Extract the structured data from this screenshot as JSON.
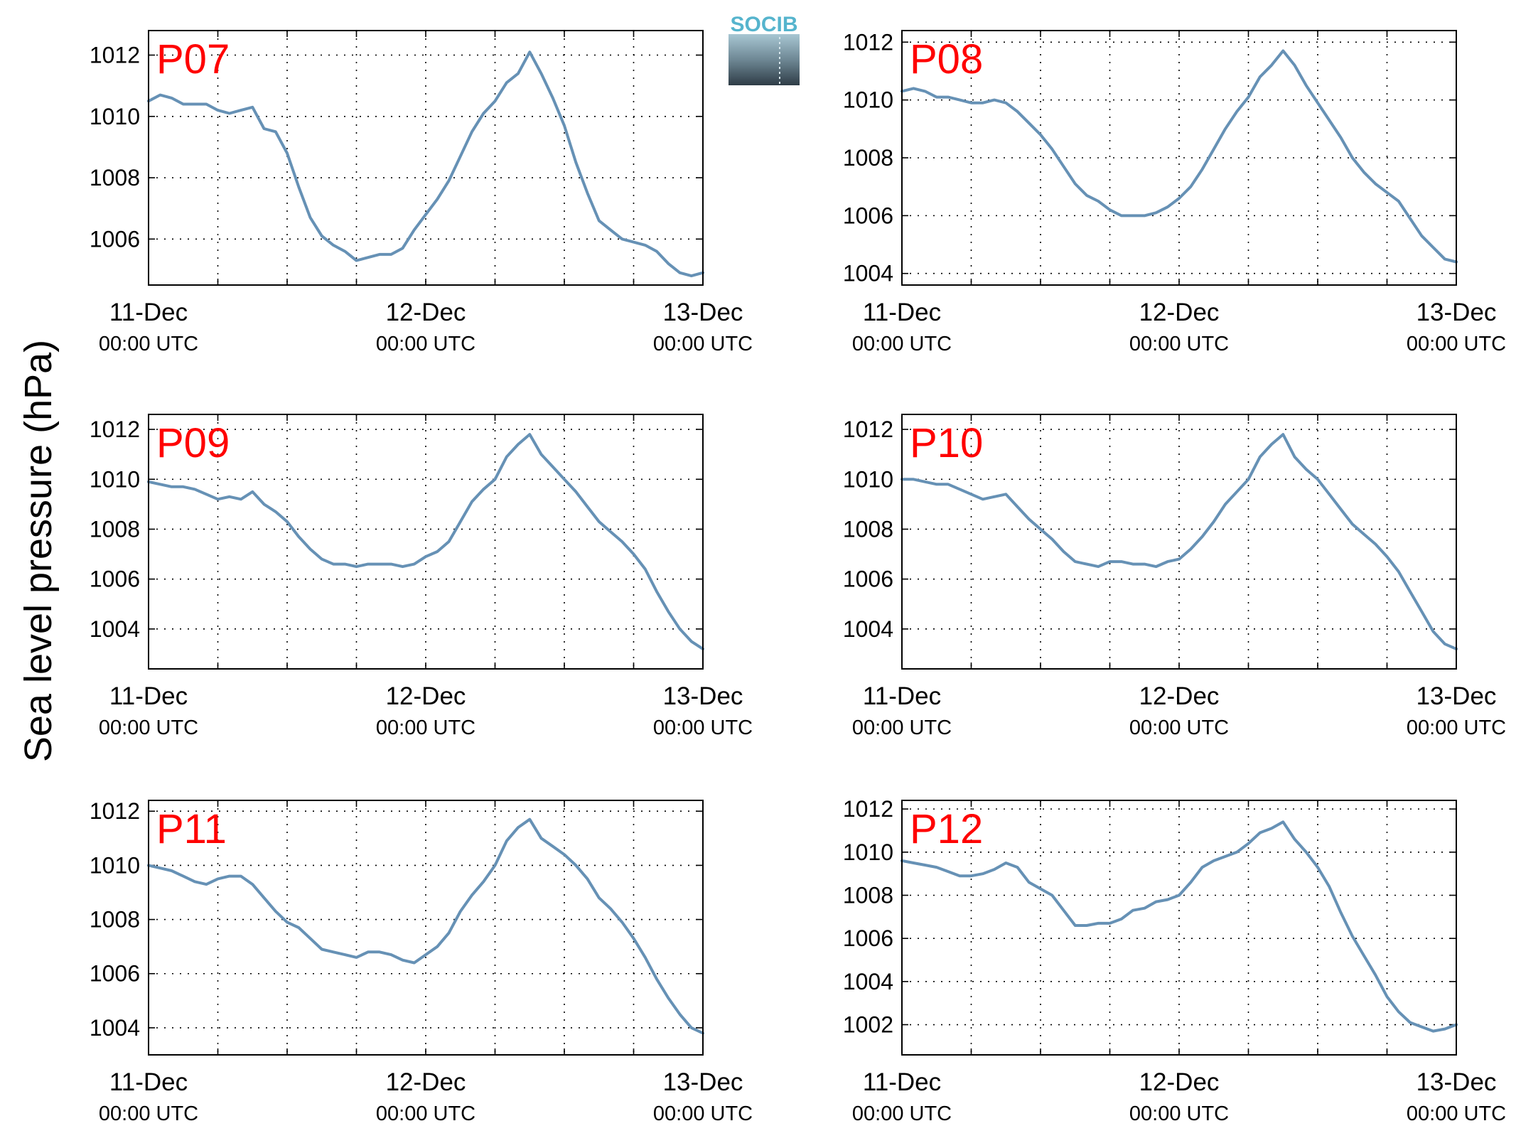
{
  "figure": {
    "ylabel": "Sea level pressure (hPa)",
    "logo_text": "SOCIB",
    "line_color": "#6691b5",
    "label_color": "#ff0000"
  },
  "chart_data": [
    {
      "type": "line",
      "label": "P07",
      "x_ticks": [
        {
          "date": "11-Dec",
          "time": "00:00 UTC"
        },
        {
          "date": "12-Dec",
          "time": "00:00 UTC"
        },
        {
          "date": "13-Dec",
          "time": "00:00 UTC"
        }
      ],
      "x_range_hours": [
        0,
        48
      ],
      "ylim": [
        1004.5,
        1012.8
      ],
      "yticks": [
        1006,
        1008,
        1010,
        1012
      ],
      "grid": true,
      "x": [
        0,
        1,
        2,
        3,
        4,
        5,
        6,
        7,
        8,
        9,
        10,
        11,
        12,
        13,
        14,
        15,
        16,
        17,
        18,
        19,
        20,
        21,
        22,
        23,
        24,
        25,
        26,
        27,
        28,
        29,
        30,
        31,
        32,
        33,
        34,
        35,
        36,
        37,
        38,
        39,
        40,
        41,
        42,
        43,
        44,
        45,
        46,
        47,
        48
      ],
      "values": [
        1010.5,
        1010.7,
        1010.6,
        1010.4,
        1010.4,
        1010.4,
        1010.2,
        1010.1,
        1010.2,
        1010.3,
        1009.6,
        1009.5,
        1008.8,
        1007.7,
        1006.7,
        1006.1,
        1005.8,
        1005.6,
        1005.3,
        1005.4,
        1005.5,
        1005.5,
        1005.7,
        1006.3,
        1006.8,
        1007.3,
        1007.9,
        1008.7,
        1009.5,
        1010.1,
        1010.5,
        1011.1,
        1011.4,
        1012.1,
        1011.4,
        1010.6,
        1009.7,
        1008.5,
        1007.5,
        1006.6,
        1006.3,
        1006.0,
        1005.9,
        1005.8,
        1005.6,
        1005.2,
        1004.9,
        1004.8,
        1004.9
      ]
    },
    {
      "type": "line",
      "label": "P08",
      "x_ticks": [
        {
          "date": "11-Dec",
          "time": "00:00 UTC"
        },
        {
          "date": "12-Dec",
          "time": "00:00 UTC"
        },
        {
          "date": "13-Dec",
          "time": "00:00 UTC"
        }
      ],
      "x_range_hours": [
        0,
        48
      ],
      "ylim": [
        1003.6,
        1012.4
      ],
      "yticks": [
        1004,
        1006,
        1008,
        1010,
        1012
      ],
      "grid": true,
      "x": [
        0,
        1,
        2,
        3,
        4,
        5,
        6,
        7,
        8,
        9,
        10,
        11,
        12,
        13,
        14,
        15,
        16,
        17,
        18,
        19,
        20,
        21,
        22,
        23,
        24,
        25,
        26,
        27,
        28,
        29,
        30,
        31,
        32,
        33,
        34,
        35,
        36,
        37,
        38,
        39,
        40,
        41,
        42,
        43,
        44,
        45,
        46,
        47,
        48
      ],
      "values": [
        1010.3,
        1010.4,
        1010.3,
        1010.1,
        1010.1,
        1010.0,
        1009.9,
        1009.9,
        1010.0,
        1009.9,
        1009.6,
        1009.2,
        1008.8,
        1008.3,
        1007.7,
        1007.1,
        1006.7,
        1006.5,
        1006.2,
        1006.0,
        1006.0,
        1006.0,
        1006.1,
        1006.3,
        1006.6,
        1007.0,
        1007.6,
        1008.3,
        1009.0,
        1009.6,
        1010.1,
        1010.8,
        1011.2,
        1011.7,
        1011.2,
        1010.5,
        1009.9,
        1009.3,
        1008.7,
        1008.0,
        1007.5,
        1007.1,
        1006.8,
        1006.5,
        1005.9,
        1005.3,
        1004.9,
        1004.5,
        1004.4
      ]
    },
    {
      "type": "line",
      "label": "P09",
      "x_ticks": [
        {
          "date": "11-Dec",
          "time": "00:00 UTC"
        },
        {
          "date": "12-Dec",
          "time": "00:00 UTC"
        },
        {
          "date": "13-Dec",
          "time": "00:00 UTC"
        }
      ],
      "x_range_hours": [
        0,
        48
      ],
      "ylim": [
        1002.4,
        1012.6
      ],
      "yticks": [
        1004,
        1006,
        1008,
        1010,
        1012
      ],
      "grid": true,
      "x": [
        0,
        1,
        2,
        3,
        4,
        5,
        6,
        7,
        8,
        9,
        10,
        11,
        12,
        13,
        14,
        15,
        16,
        17,
        18,
        19,
        20,
        21,
        22,
        23,
        24,
        25,
        26,
        27,
        28,
        29,
        30,
        31,
        32,
        33,
        34,
        35,
        36,
        37,
        38,
        39,
        40,
        41,
        42,
        43,
        44,
        45,
        46,
        47,
        48
      ],
      "values": [
        1009.9,
        1009.8,
        1009.7,
        1009.7,
        1009.6,
        1009.4,
        1009.2,
        1009.3,
        1009.2,
        1009.5,
        1009.0,
        1008.7,
        1008.3,
        1007.7,
        1007.2,
        1006.8,
        1006.6,
        1006.6,
        1006.5,
        1006.6,
        1006.6,
        1006.6,
        1006.5,
        1006.6,
        1006.9,
        1007.1,
        1007.5,
        1008.3,
        1009.1,
        1009.6,
        1010.0,
        1010.9,
        1011.4,
        1011.8,
        1011.0,
        1010.5,
        1010.0,
        1009.5,
        1008.9,
        1008.3,
        1007.9,
        1007.5,
        1007.0,
        1006.4,
        1005.5,
        1004.7,
        1004.0,
        1003.5,
        1003.2
      ]
    },
    {
      "type": "line",
      "label": "P10",
      "x_ticks": [
        {
          "date": "11-Dec",
          "time": "00:00 UTC"
        },
        {
          "date": "12-Dec",
          "time": "00:00 UTC"
        },
        {
          "date": "13-Dec",
          "time": "00:00 UTC"
        }
      ],
      "x_range_hours": [
        0,
        48
      ],
      "ylim": [
        1002.4,
        1012.6
      ],
      "yticks": [
        1004,
        1006,
        1008,
        1010,
        1012
      ],
      "grid": true,
      "x": [
        0,
        1,
        2,
        3,
        4,
        5,
        6,
        7,
        8,
        9,
        10,
        11,
        12,
        13,
        14,
        15,
        16,
        17,
        18,
        19,
        20,
        21,
        22,
        23,
        24,
        25,
        26,
        27,
        28,
        29,
        30,
        31,
        32,
        33,
        34,
        35,
        36,
        37,
        38,
        39,
        40,
        41,
        42,
        43,
        44,
        45,
        46,
        47,
        48
      ],
      "values": [
        1010.0,
        1010.0,
        1009.9,
        1009.8,
        1009.8,
        1009.6,
        1009.4,
        1009.2,
        1009.3,
        1009.4,
        1008.9,
        1008.4,
        1008.0,
        1007.6,
        1007.1,
        1006.7,
        1006.6,
        1006.5,
        1006.7,
        1006.7,
        1006.6,
        1006.6,
        1006.5,
        1006.7,
        1006.8,
        1007.2,
        1007.7,
        1008.3,
        1009.0,
        1009.5,
        1010.0,
        1010.9,
        1011.4,
        1011.8,
        1010.9,
        1010.4,
        1010.0,
        1009.4,
        1008.8,
        1008.2,
        1007.8,
        1007.4,
        1006.9,
        1006.3,
        1005.5,
        1004.7,
        1003.9,
        1003.4,
        1003.2
      ]
    },
    {
      "type": "line",
      "label": "P11",
      "x_ticks": [
        {
          "date": "11-Dec",
          "time": "00:00 UTC"
        },
        {
          "date": "12-Dec",
          "time": "00:00 UTC"
        },
        {
          "date": "13-Dec",
          "time": "00:00 UTC"
        }
      ],
      "x_range_hours": [
        0,
        48
      ],
      "ylim": [
        1003.0,
        1012.4
      ],
      "yticks": [
        1004,
        1006,
        1008,
        1010,
        1012
      ],
      "grid": true,
      "x": [
        0,
        1,
        2,
        3,
        4,
        5,
        6,
        7,
        8,
        9,
        10,
        11,
        12,
        13,
        14,
        15,
        16,
        17,
        18,
        19,
        20,
        21,
        22,
        23,
        24,
        25,
        26,
        27,
        28,
        29,
        30,
        31,
        32,
        33,
        34,
        35,
        36,
        37,
        38,
        39,
        40,
        41,
        42,
        43,
        44,
        45,
        46,
        47,
        48
      ],
      "values": [
        1010.0,
        1009.9,
        1009.8,
        1009.6,
        1009.4,
        1009.3,
        1009.5,
        1009.6,
        1009.6,
        1009.3,
        1008.8,
        1008.3,
        1007.9,
        1007.7,
        1007.3,
        1006.9,
        1006.8,
        1006.7,
        1006.6,
        1006.8,
        1006.8,
        1006.7,
        1006.5,
        1006.4,
        1006.7,
        1007.0,
        1007.5,
        1008.3,
        1008.9,
        1009.4,
        1010.0,
        1010.9,
        1011.4,
        1011.7,
        1011.0,
        1010.7,
        1010.4,
        1010.0,
        1009.5,
        1008.8,
        1008.4,
        1007.9,
        1007.3,
        1006.6,
        1005.8,
        1005.1,
        1004.5,
        1004.0,
        1003.8
      ]
    },
    {
      "type": "line",
      "label": "P12",
      "x_ticks": [
        {
          "date": "11-Dec",
          "time": "00:00 UTC"
        },
        {
          "date": "12-Dec",
          "time": "00:00 UTC"
        },
        {
          "date": "13-Dec",
          "time": "00:00 UTC"
        }
      ],
      "x_range_hours": [
        0,
        48
      ],
      "ylim": [
        1000.6,
        1012.4
      ],
      "yticks": [
        1002,
        1004,
        1006,
        1008,
        1010,
        1012
      ],
      "grid": true,
      "x": [
        0,
        1,
        2,
        3,
        4,
        5,
        6,
        7,
        8,
        9,
        10,
        11,
        12,
        13,
        14,
        15,
        16,
        17,
        18,
        19,
        20,
        21,
        22,
        23,
        24,
        25,
        26,
        27,
        28,
        29,
        30,
        31,
        32,
        33,
        34,
        35,
        36,
        37,
        38,
        39,
        40,
        41,
        42,
        43,
        44,
        45,
        46,
        47,
        48
      ],
      "values": [
        1009.6,
        1009.5,
        1009.4,
        1009.3,
        1009.1,
        1008.9,
        1008.9,
        1009.0,
        1009.2,
        1009.5,
        1009.3,
        1008.6,
        1008.3,
        1008.0,
        1007.3,
        1006.6,
        1006.6,
        1006.7,
        1006.7,
        1006.9,
        1007.3,
        1007.4,
        1007.7,
        1007.8,
        1008.0,
        1008.6,
        1009.3,
        1009.6,
        1009.8,
        1010.0,
        1010.4,
        1010.9,
        1011.1,
        1011.4,
        1010.6,
        1010.0,
        1009.3,
        1008.4,
        1007.2,
        1006.1,
        1005.2,
        1004.3,
        1003.3,
        1002.6,
        1002.1,
        1001.9,
        1001.7,
        1001.8,
        1002.0
      ]
    }
  ]
}
